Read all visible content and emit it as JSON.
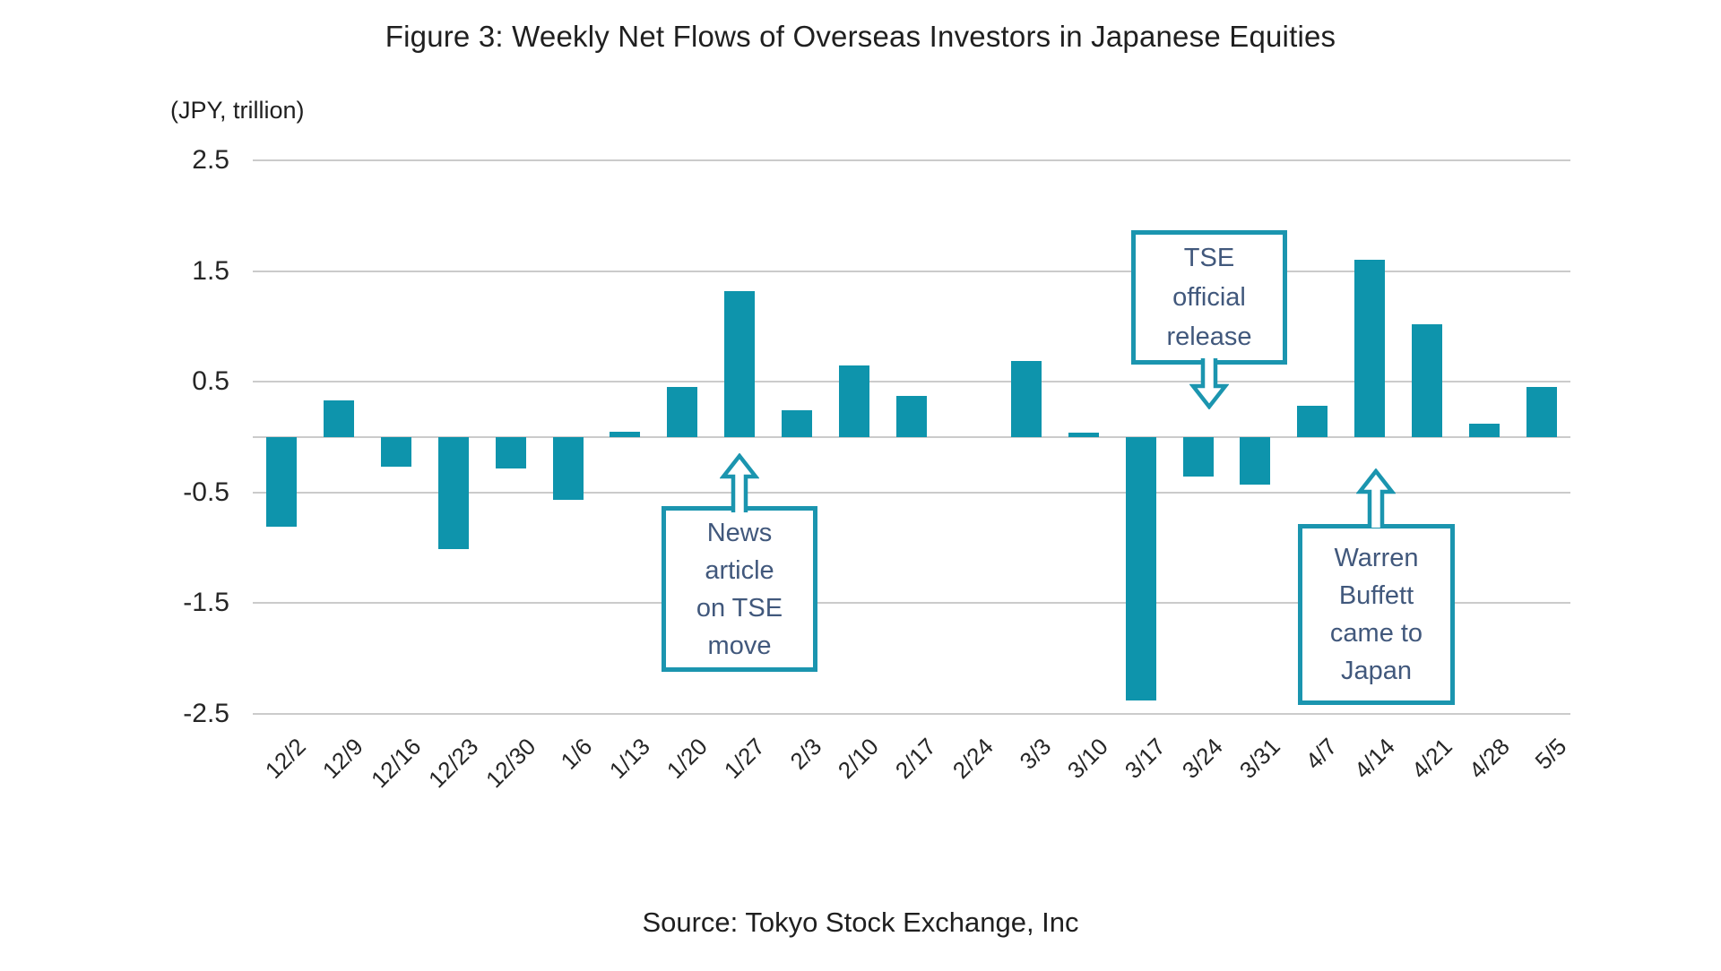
{
  "figure": {
    "title": "Figure 3: Weekly Net Flows of Overseas Investors in Japanese Equities",
    "y_axis_unit": "(JPY, trillion)",
    "source": "Source: Tokyo Stock Exchange, Inc"
  },
  "colors": {
    "bar": "#0E94AC",
    "annotation_border": "#1B95AF",
    "annotation_text": "#41587C",
    "gridline": "#CBCBCB",
    "axis_text": "#262626"
  },
  "chart_data": {
    "type": "bar",
    "title": "Figure 3: Weekly Net Flows of Overseas Investors in Japanese Equities",
    "ylabel": "(JPY, trillion)",
    "xlabel": "",
    "ylim": [
      -2.5,
      2.5
    ],
    "yticks": [
      "2.5",
      "1.5",
      "0.5",
      "-0.5",
      "-1.5",
      "-2.5"
    ],
    "gridline_values": [
      2.5,
      1.5,
      0.5,
      0,
      -0.5,
      -1.5,
      -2.5
    ],
    "grid": true,
    "legend": false,
    "categories": [
      "12/2",
      "12/9",
      "12/16",
      "12/23",
      "12/30",
      "1/6",
      "1/13",
      "1/20",
      "1/27",
      "2/3",
      "2/10",
      "2/17",
      "2/24",
      "3/3",
      "3/10",
      "3/17",
      "3/24",
      "3/31",
      "4/7",
      "4/14",
      "4/21",
      "4/28",
      "5/5"
    ],
    "values": [
      -0.81,
      0.33,
      -0.27,
      -1.01,
      -0.28,
      -0.57,
      0.05,
      0.45,
      1.32,
      0.24,
      0.65,
      0.37,
      0.0,
      0.69,
      0.04,
      -2.38,
      -0.36,
      -0.43,
      0.28,
      1.6,
      1.02,
      0.12,
      0.45
    ],
    "annotations": [
      {
        "id": "news-article",
        "text": "News\narticle\non TSE\nmove",
        "target_category": "1/27",
        "arrow_direction": "up"
      },
      {
        "id": "tse-release",
        "text": "TSE\nofficial\nrelease",
        "target_category": "3/24",
        "arrow_direction": "down"
      },
      {
        "id": "warren-buffett",
        "text": "Warren\nBuffett\ncame to\nJapan",
        "target_category": "4/14",
        "arrow_direction": "up"
      }
    ]
  }
}
